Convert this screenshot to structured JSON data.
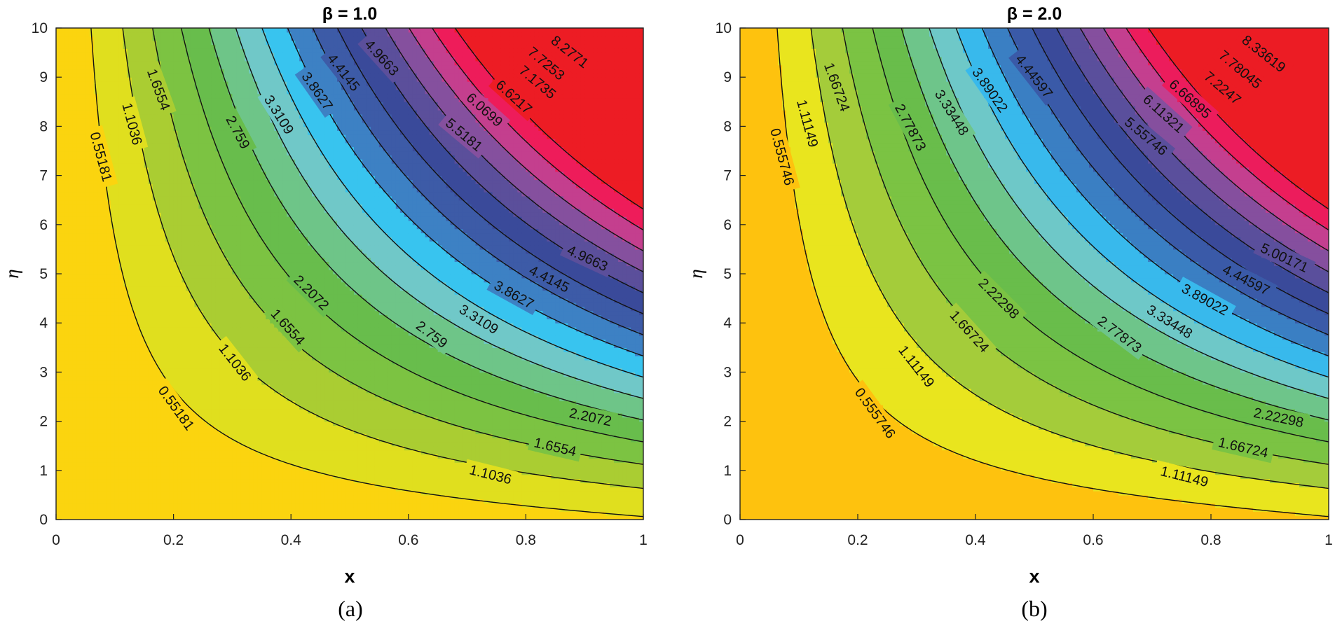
{
  "chart_data": [
    {
      "type": "contour",
      "panel": "a",
      "caption": "(a)",
      "title": "β = 1.0",
      "beta": 1.0,
      "xlabel": "x",
      "ylabel": "η",
      "xlim": [
        0,
        1
      ],
      "ylim": [
        0,
        10
      ],
      "xticks": [
        0,
        0.2,
        0.4,
        0.6,
        0.8,
        1
      ],
      "yticks": [
        0,
        1,
        2,
        3,
        4,
        5,
        6,
        7,
        8,
        9,
        10
      ],
      "grid": false,
      "colormap": [
        "#fbd40f",
        "#e0df1e",
        "#aacd32",
        "#7cc342",
        "#68bd4c",
        "#6ec588",
        "#70c8c8",
        "#38c4ef",
        "#3d81c4",
        "#3d5ba7",
        "#3a4a9a",
        "#5b4f9b",
        "#85509e",
        "#c43f8e",
        "#ee1c5a",
        "#ed1c24"
      ],
      "levels": [
        0.55181,
        1.1036,
        1.6554,
        2.2072,
        2.759,
        3.3109,
        3.8627,
        4.4145,
        4.9663,
        5.5181,
        6.0699,
        6.6217,
        7.1735,
        7.7253,
        8.2771
      ],
      "labels": [
        {
          "text": "0.55181",
          "x": 0.077,
          "y": 7.38,
          "angle": 75
        },
        {
          "text": "1.1036",
          "x": 0.13,
          "y": 8.05,
          "angle": 75
        },
        {
          "text": "1.6554",
          "x": 0.175,
          "y": 8.75,
          "angle": 70
        },
        {
          "text": "2.759",
          "x": 0.31,
          "y": 7.88,
          "angle": 62
        },
        {
          "text": "3.3109",
          "x": 0.38,
          "y": 8.24,
          "angle": 58
        },
        {
          "text": "3.8627",
          "x": 0.445,
          "y": 8.72,
          "angle": 55
        },
        {
          "text": "4.4145",
          "x": 0.49,
          "y": 9.1,
          "angle": 52
        },
        {
          "text": "4.9663",
          "x": 0.555,
          "y": 9.4,
          "angle": 48
        },
        {
          "text": "5.5181",
          "x": 0.695,
          "y": 7.83,
          "angle": 40
        },
        {
          "text": "6.0699",
          "x": 0.73,
          "y": 8.34,
          "angle": 42
        },
        {
          "text": "6.6217",
          "x": 0.78,
          "y": 8.6,
          "angle": 42
        },
        {
          "text": "7.1735",
          "x": 0.82,
          "y": 8.9,
          "angle": 40
        },
        {
          "text": "7.7253",
          "x": 0.835,
          "y": 9.28,
          "angle": 40
        },
        {
          "text": "8.2771",
          "x": 0.875,
          "y": 9.52,
          "angle": 38
        },
        {
          "text": "4.9663",
          "x": 0.905,
          "y": 5.32,
          "angle": 25
        },
        {
          "text": "4.4145",
          "x": 0.84,
          "y": 4.9,
          "angle": 27
        },
        {
          "text": "3.8627",
          "x": 0.78,
          "y": 4.58,
          "angle": 29
        },
        {
          "text": "3.3109",
          "x": 0.72,
          "y": 4.08,
          "angle": 32
        },
        {
          "text": "2.759",
          "x": 0.64,
          "y": 3.77,
          "angle": 37
        },
        {
          "text": "2.2072",
          "x": 0.435,
          "y": 4.62,
          "angle": 45
        },
        {
          "text": "1.6554",
          "x": 0.395,
          "y": 3.92,
          "angle": 48
        },
        {
          "text": "1.1036",
          "x": 0.305,
          "y": 3.2,
          "angle": 52
        },
        {
          "text": "0.55181",
          "x": 0.205,
          "y": 2.27,
          "angle": 54
        },
        {
          "text": "2.2072",
          "x": 0.91,
          "y": 2.09,
          "angle": 12
        },
        {
          "text": "1.6554",
          "x": 0.85,
          "y": 1.48,
          "angle": 13
        },
        {
          "text": "1.1036",
          "x": 0.74,
          "y": 0.92,
          "angle": 14
        }
      ]
    },
    {
      "type": "contour",
      "panel": "b",
      "caption": "(b)",
      "title": "β = 2.0",
      "beta": 2.0,
      "xlabel": "x",
      "ylabel": "η",
      "xlim": [
        0,
        1
      ],
      "ylim": [
        0,
        10
      ],
      "xticks": [
        0,
        0.2,
        0.4,
        0.6,
        0.8,
        1
      ],
      "yticks": [
        0,
        1,
        2,
        3,
        4,
        5,
        6,
        7,
        8,
        9,
        10
      ],
      "grid": false,
      "colormap": [
        "#fec20e",
        "#e9e51e",
        "#a4cc3a",
        "#7bc343",
        "#69bd4b",
        "#6ec58a",
        "#6ec8c8",
        "#38b9ec",
        "#3a7fc3",
        "#3a5aa8",
        "#3a4a9a",
        "#5a4f9c",
        "#854f9e",
        "#c43f8f",
        "#ec1c5c",
        "#ec1c24"
      ],
      "levels": [
        0.555746,
        1.11149,
        1.66724,
        2.22298,
        2.77873,
        3.33448,
        3.89022,
        4.44597,
        5.00171,
        5.55746,
        6.11321,
        6.66895,
        7.2247,
        7.78045,
        8.33619
      ],
      "labels": [
        {
          "text": "0.555746",
          "x": 0.072,
          "y": 7.38,
          "angle": 75
        },
        {
          "text": "1.11149",
          "x": 0.115,
          "y": 8.06,
          "angle": 75
        },
        {
          "text": "1.66724",
          "x": 0.165,
          "y": 8.8,
          "angle": 70
        },
        {
          "text": "2.77873",
          "x": 0.29,
          "y": 7.98,
          "angle": 62
        },
        {
          "text": "3.33448",
          "x": 0.36,
          "y": 8.28,
          "angle": 58
        },
        {
          "text": "3.89022",
          "x": 0.425,
          "y": 8.74,
          "angle": 55
        },
        {
          "text": "4.44597",
          "x": 0.5,
          "y": 9.02,
          "angle": 52
        },
        {
          "text": "5.55746",
          "x": 0.69,
          "y": 7.8,
          "angle": 40
        },
        {
          "text": "6.11321",
          "x": 0.72,
          "y": 8.26,
          "angle": 42
        },
        {
          "text": "6.66895",
          "x": 0.765,
          "y": 8.56,
          "angle": 42
        },
        {
          "text": "7.2247",
          "x": 0.82,
          "y": 8.78,
          "angle": 40
        },
        {
          "text": "7.78045",
          "x": 0.85,
          "y": 9.16,
          "angle": 40
        },
        {
          "text": "8.33619",
          "x": 0.89,
          "y": 9.48,
          "angle": 38
        },
        {
          "text": "5.00171",
          "x": 0.925,
          "y": 5.33,
          "angle": 25
        },
        {
          "text": "4.44597",
          "x": 0.86,
          "y": 4.88,
          "angle": 27
        },
        {
          "text": "3.89022",
          "x": 0.79,
          "y": 4.48,
          "angle": 29
        },
        {
          "text": "3.33448",
          "x": 0.73,
          "y": 4.03,
          "angle": 32
        },
        {
          "text": "2.77873",
          "x": 0.645,
          "y": 3.77,
          "angle": 37
        },
        {
          "text": "2.22298",
          "x": 0.44,
          "y": 4.5,
          "angle": 45
        },
        {
          "text": "1.66724",
          "x": 0.39,
          "y": 3.83,
          "angle": 48
        },
        {
          "text": "1.11149",
          "x": 0.3,
          "y": 3.12,
          "angle": 52
        },
        {
          "text": "0.555746",
          "x": 0.23,
          "y": 2.17,
          "angle": 54
        },
        {
          "text": "2.22298",
          "x": 0.915,
          "y": 2.08,
          "angle": 12
        },
        {
          "text": "1.66724",
          "x": 0.855,
          "y": 1.47,
          "angle": 13
        },
        {
          "text": "1.11149",
          "x": 0.755,
          "y": 0.88,
          "angle": 14
        }
      ]
    }
  ]
}
